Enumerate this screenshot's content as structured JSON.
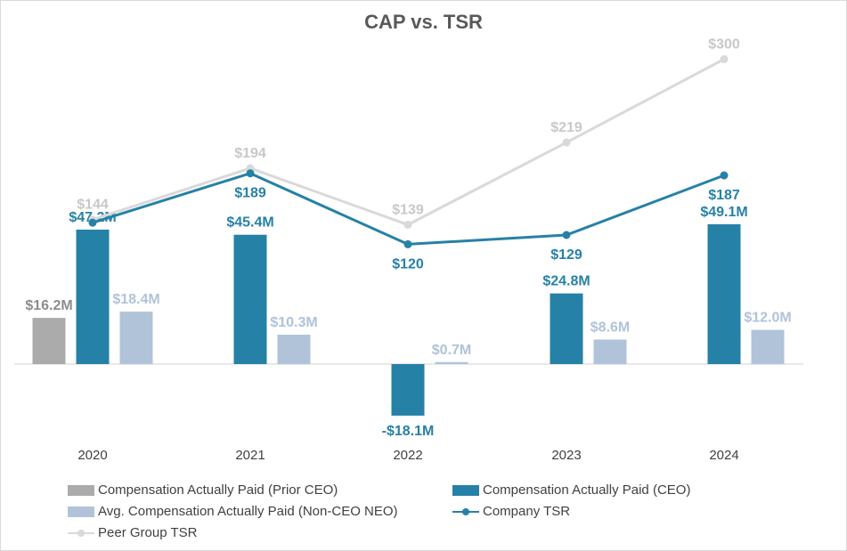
{
  "chart_data": {
    "type": "bar",
    "title": "CAP vs. TSR",
    "categories": [
      "2020",
      "2021",
      "2022",
      "2023",
      "2024"
    ],
    "series": [
      {
        "name": "Compensation Actually Paid (Prior CEO)",
        "kind": "bar",
        "color": "#ababab",
        "values": [
          16.2,
          null,
          null,
          null,
          null
        ],
        "labels": [
          "$16.2M",
          null,
          null,
          null,
          null
        ]
      },
      {
        "name": "Compensation Actually Paid (CEO)",
        "kind": "bar",
        "color": "#2681a6",
        "values": [
          47.2,
          45.4,
          -18.1,
          24.8,
          49.1
        ],
        "labels": [
          "$47.2M",
          "$45.4M",
          "-$18.1M",
          "$24.8M",
          "$49.1M"
        ]
      },
      {
        "name": "Avg. Compensation Actually Paid (Non-CEO NEO)",
        "kind": "bar",
        "color": "#b0c3d9",
        "values": [
          18.4,
          10.3,
          0.7,
          8.6,
          12.0
        ],
        "labels": [
          "$18.4M",
          "$10.3M",
          "$0.7M",
          "$8.6M",
          "$12.0M"
        ]
      },
      {
        "name": "Company TSR",
        "kind": "line",
        "color": "#2681a6",
        "values": [
          141,
          189,
          120,
          129,
          187
        ],
        "labels": [
          "$141",
          "$189",
          "$120",
          "$129",
          "$187"
        ]
      },
      {
        "name": "Peer Group TSR",
        "kind": "line",
        "color": "#d9d9d9",
        "values": [
          144,
          194,
          139,
          219,
          300
        ],
        "labels": [
          "$144",
          "$194",
          "$139",
          "$219",
          "$300"
        ]
      }
    ],
    "colors": {
      "prior_ceo_label": "#8c8c8c",
      "ceo_label": "#2681a6",
      "neo_label": "#b0c3d9",
      "peer_label": "#c8c8c8",
      "axis": "#d9d9d9",
      "tick": "#404040"
    },
    "grid": false,
    "legend_position": "bottom"
  },
  "legend": [
    {
      "label": "Compensation Actually Paid (Prior CEO)"
    },
    {
      "label": "Compensation Actually Paid (CEO)"
    },
    {
      "label": "Avg. Compensation Actually Paid (Non-CEO NEO)"
    },
    {
      "label": "Company TSR"
    },
    {
      "label": "Peer Group TSR"
    }
  ]
}
